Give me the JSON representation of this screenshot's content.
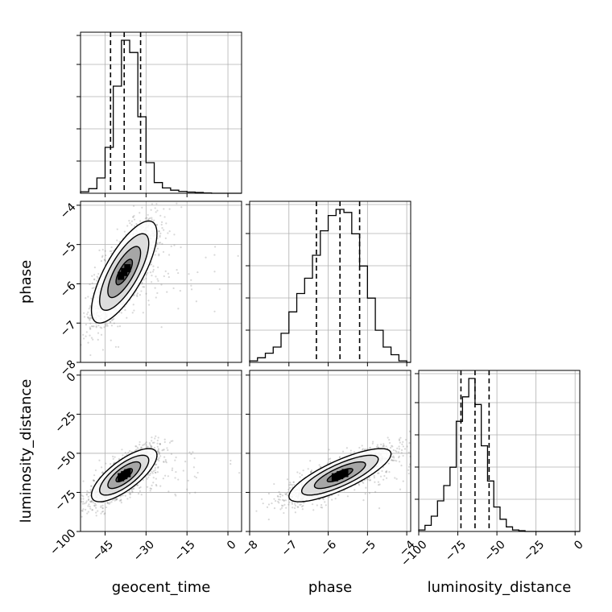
{
  "chart_data": {
    "type": "corner",
    "parameters": [
      "geocent_time",
      "phase",
      "luminosity_distance"
    ],
    "axis_labels": {
      "geocent_time": "geocent_time",
      "phase": "phase",
      "luminosity_distance": "luminosity_distance"
    },
    "ranges": {
      "geocent_time": [
        -54,
        5
      ],
      "phase": [
        -8,
        -3.9
      ],
      "luminosity_distance": [
        -100,
        3
      ]
    },
    "ticks": {
      "geocent_time": [
        -45,
        -30,
        -15,
        0
      ],
      "phase": [
        -8,
        -7,
        -6,
        -5,
        -4
      ],
      "luminosity_distance": [
        -100,
        -75,
        -50,
        -25,
        0
      ]
    },
    "tick_labels": {
      "geocent_time": [
        "−45",
        "−30",
        "−15",
        "0"
      ],
      "phase": [
        "−8",
        "−7",
        "−6",
        "−5",
        "−4"
      ],
      "luminosity_distance": [
        "−100",
        "−75",
        "−50",
        "−25",
        "0"
      ]
    },
    "histograms": {
      "geocent_time": {
        "edges": [
          -54,
          -51,
          -48,
          -45,
          -42,
          -39,
          -36,
          -33,
          -30,
          -27,
          -24,
          -21,
          -18,
          -15,
          -12,
          -9,
          -6
        ],
        "counts": [
          0.01,
          0.03,
          0.1,
          0.3,
          0.7,
          1.0,
          0.92,
          0.5,
          0.2,
          0.07,
          0.035,
          0.02,
          0.012,
          0.008,
          0.005,
          0.002
        ],
        "quantiles": [
          -43,
          -38,
          -32
        ]
      },
      "phase": {
        "edges": [
          -8,
          -7.8,
          -7.6,
          -7.4,
          -7.2,
          -7.0,
          -6.8,
          -6.6,
          -6.4,
          -6.2,
          -6.0,
          -5.8,
          -5.6,
          -5.4,
          -5.2,
          -5.0,
          -4.8,
          -4.6,
          -4.4,
          -4.2,
          -4.0
        ],
        "counts": [
          0.01,
          0.03,
          0.06,
          0.1,
          0.19,
          0.33,
          0.45,
          0.55,
          0.7,
          0.86,
          0.96,
          1.0,
          0.98,
          0.84,
          0.63,
          0.42,
          0.21,
          0.1,
          0.05,
          0.01
        ],
        "quantiles": [
          -6.3,
          -5.7,
          -5.2
        ]
      },
      "luminosity_distance": {
        "edges": [
          -100,
          -96,
          -92,
          -88,
          -84,
          -80,
          -76,
          -72,
          -68,
          -64,
          -60,
          -56,
          -52,
          -48,
          -44,
          -40,
          -36,
          -32
        ],
        "counts": [
          0.01,
          0.04,
          0.1,
          0.2,
          0.3,
          0.42,
          0.72,
          0.88,
          1.0,
          0.83,
          0.56,
          0.33,
          0.16,
          0.08,
          0.03,
          0.01,
          0.005
        ],
        "quantiles": [
          -73,
          -64,
          -55
        ]
      }
    },
    "pairs": [
      {
        "x": "geocent_time",
        "y": "phase",
        "center": [
          -38,
          -5.7
        ],
        "std": [
          6,
          0.65
        ],
        "corr": 0.75
      },
      {
        "x": "geocent_time",
        "y": "luminosity_distance",
        "center": [
          -38,
          -64
        ],
        "std": [
          6,
          8.5
        ],
        "corr": 0.75
      },
      {
        "x": "phase",
        "y": "luminosity_distance",
        "center": [
          -5.7,
          -64
        ],
        "std": [
          0.65,
          8.5
        ],
        "corr": 0.8
      }
    ],
    "grid": true,
    "colors": {
      "line": "#000000",
      "grid": "#b0b0b0",
      "scatter": "#7f7f7f"
    }
  }
}
